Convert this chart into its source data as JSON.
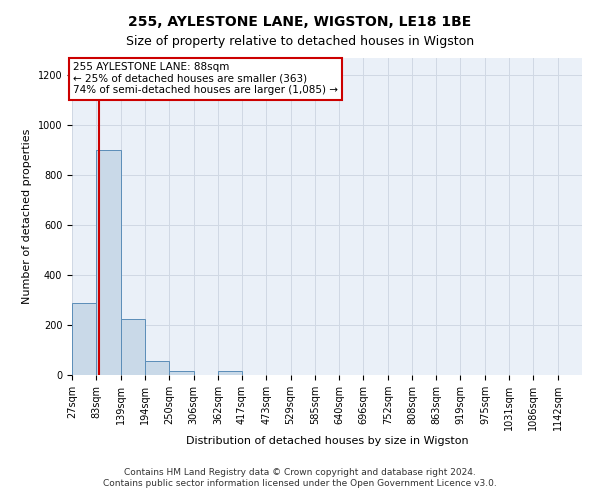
{
  "title": "255, AYLESTONE LANE, WIGSTON, LE18 1BE",
  "subtitle": "Size of property relative to detached houses in Wigston",
  "xlabel": "Distribution of detached houses by size in Wigston",
  "ylabel": "Number of detached properties",
  "bin_edges": [
    27,
    83,
    139,
    194,
    250,
    306,
    362,
    417,
    473,
    529,
    585,
    640,
    696,
    752,
    808,
    863,
    919,
    975,
    1031,
    1086,
    1142
  ],
  "bar_heights": [
    290,
    900,
    225,
    55,
    15,
    0,
    15,
    0,
    0,
    0,
    0,
    0,
    0,
    0,
    0,
    0,
    0,
    0,
    0,
    0
  ],
  "bar_color": "#c9d9e8",
  "bar_edge_color": "#5b8db8",
  "property_size": 88,
  "red_line_color": "#cc0000",
  "annotation_line1": "255 AYLESTONE LANE: 88sqm",
  "annotation_line2": "← 25% of detached houses are smaller (363)",
  "annotation_line3": "74% of semi-detached houses are larger (1,085) →",
  "annotation_box_color": "#cc0000",
  "annotation_bg_color": "#ffffff",
  "ylim": [
    0,
    1270
  ],
  "yticks": [
    0,
    200,
    400,
    600,
    800,
    1000,
    1200
  ],
  "tick_labels": [
    "27sqm",
    "83sqm",
    "139sqm",
    "194sqm",
    "250sqm",
    "306sqm",
    "362sqm",
    "417sqm",
    "473sqm",
    "529sqm",
    "585sqm",
    "640sqm",
    "696sqm",
    "752sqm",
    "808sqm",
    "863sqm",
    "919sqm",
    "975sqm",
    "1031sqm",
    "1086sqm",
    "1142sqm"
  ],
  "grid_color": "#d0d8e4",
  "bg_color": "#eaf0f8",
  "footer_line1": "Contains HM Land Registry data © Crown copyright and database right 2024.",
  "footer_line2": "Contains public sector information licensed under the Open Government Licence v3.0.",
  "title_fontsize": 10,
  "subtitle_fontsize": 9,
  "axis_label_fontsize": 8,
  "tick_fontsize": 7,
  "annotation_fontsize": 7.5,
  "footer_fontsize": 6.5
}
